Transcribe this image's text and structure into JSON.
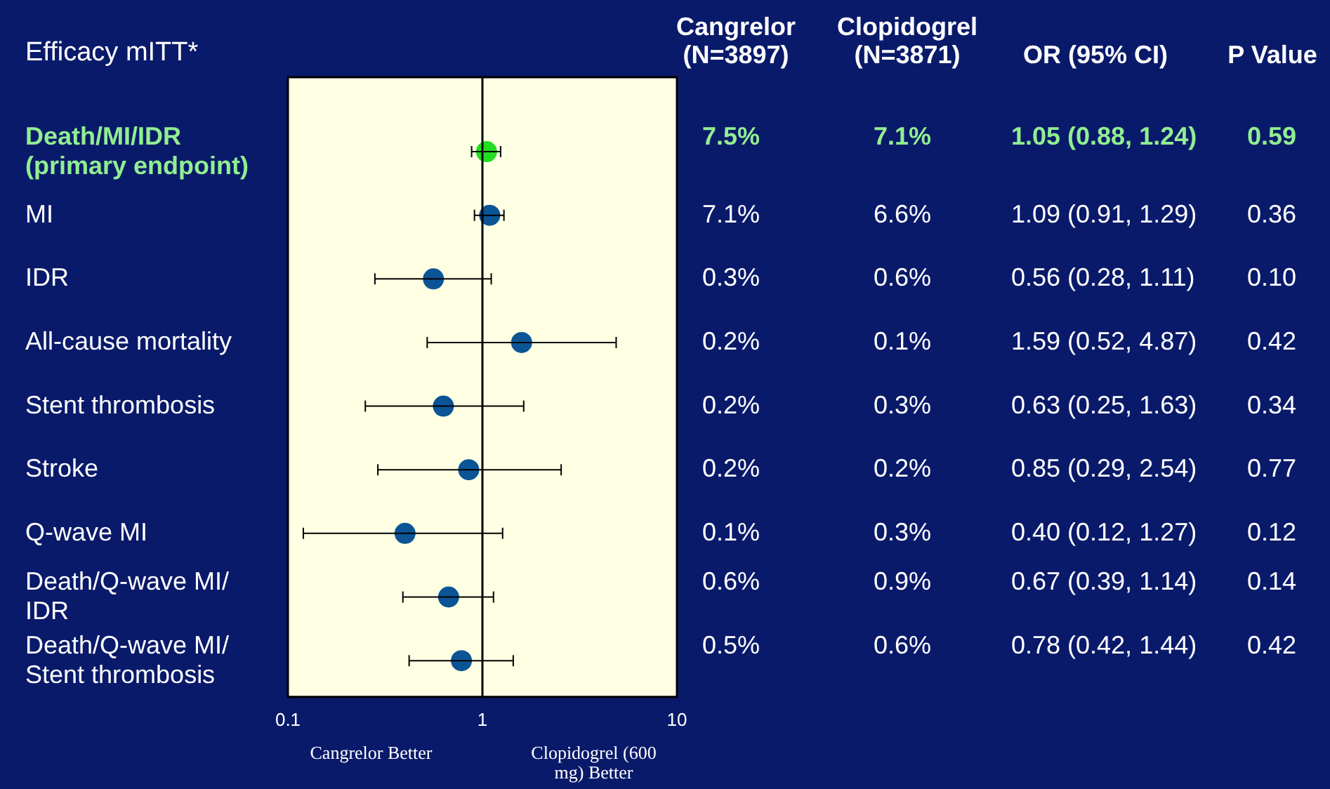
{
  "chart_data": {
    "type": "scatter",
    "orientation": "horizontal",
    "title": "Efficacy mITT*",
    "categories": [
      "Death/MI/IDR (primary endpoint)",
      "MI",
      "IDR",
      "All-cause mortality",
      "Stent thrombosis",
      "Stroke",
      "Q-wave MI",
      "Death/Q-wave MI/IDR",
      "Death/Q-wave MI/Stent thrombosis"
    ],
    "values": [
      1.05,
      1.09,
      0.56,
      1.59,
      0.63,
      0.85,
      0.4,
      0.67,
      0.78
    ],
    "errors": [
      [
        0.88,
        1.24
      ],
      [
        0.91,
        1.29
      ],
      [
        0.28,
        1.11
      ],
      [
        0.52,
        4.87
      ],
      [
        0.25,
        1.63
      ],
      [
        0.29,
        2.54
      ],
      [
        0.12,
        1.27
      ],
      [
        0.39,
        1.14
      ],
      [
        0.42,
        1.44
      ]
    ],
    "value_labels": [
      "1.05 (0.88, 1.24)",
      "1.09 (0.91, 1.29)",
      "0.56 (0.28, 1.11)",
      "1.59 (0.52, 4.87)",
      "0.63 (0.25, 1.63)",
      "0.85 (0.29, 2.54)",
      "0.40 (0.12, 1.27)",
      "0.67 (0.39, 1.14)",
      "0.78 (0.42, 1.44)"
    ],
    "color": "#0b5596",
    "colors": [
      "#22dd22",
      "#0b5596",
      "#0b5596",
      "#0b5596",
      "#0b5596",
      "#0b5596",
      "#0b5596",
      "#0b5596",
      "#0b5596"
    ],
    "xlim": [
      0.1,
      10
    ],
    "xticks": [
      0.1,
      1,
      10
    ],
    "log": "x",
    "ref_lines": [
      {
        "axis": "x",
        "value": 1,
        "color": "#000000"
      }
    ],
    "annotations": [
      "Cangrelor (N=3897)",
      "Clopidogrel (N=3871)",
      "OR (95% CI)",
      "P Value",
      "7.5%",
      "7.1%",
      "0.59",
      "7.1%",
      "6.6%",
      "0.36",
      "0.3%",
      "0.6%",
      "0.10",
      "0.2%",
      "0.1%",
      "0.42",
      "0.2%",
      "0.3%",
      "0.34",
      "0.2%",
      "0.2%",
      "0.77",
      "0.1%",
      "0.3%",
      "0.12",
      "0.6%",
      "0.9%",
      "0.14",
      "0.5%",
      "0.6%",
      "0.42",
      "Cangrelor Better",
      "Clopidogrel (600 mg) Better"
    ],
    "legend": false,
    "grid": false,
    "marker": "circle"
  }
}
